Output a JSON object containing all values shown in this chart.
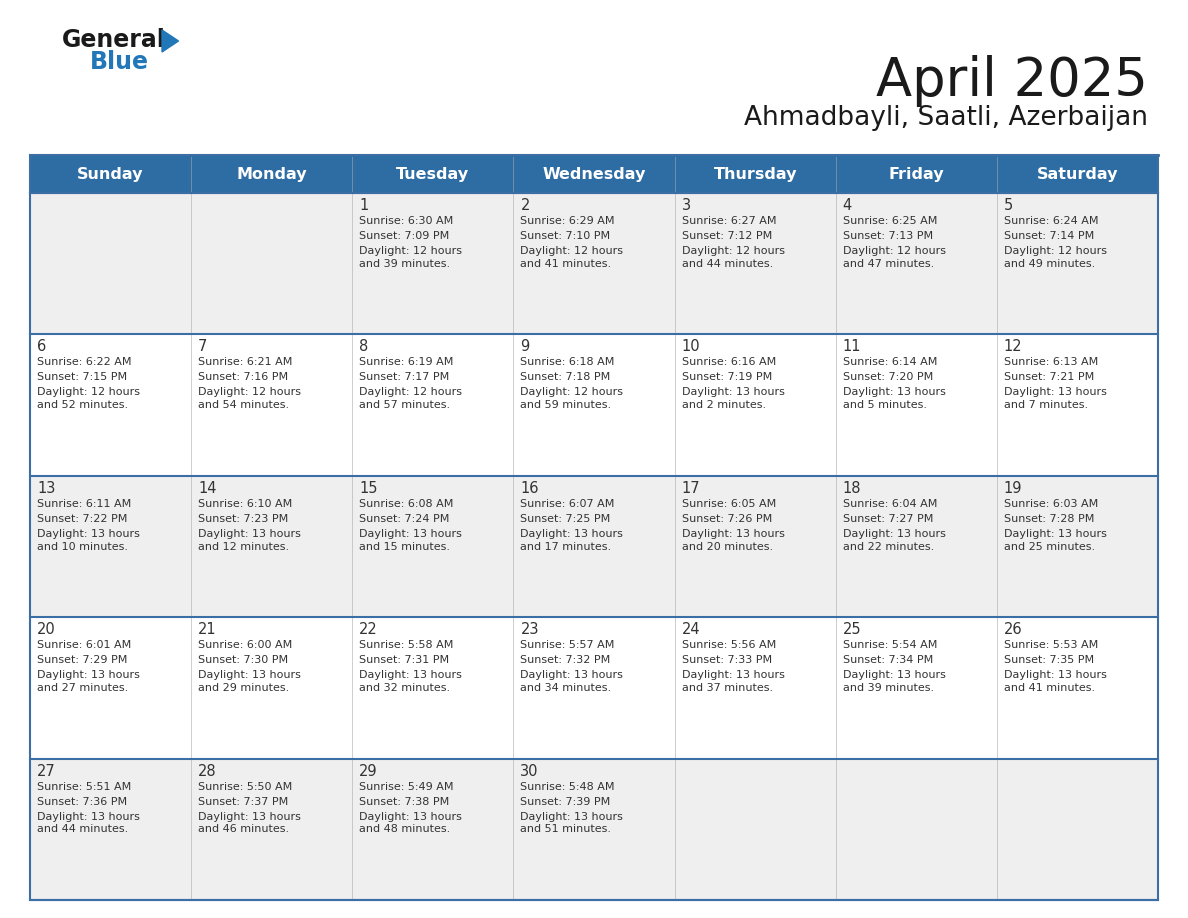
{
  "title": "April 2025",
  "subtitle": "Ahmadbayli, Saatli, Azerbaijan",
  "header_color": "#2E6DA4",
  "header_text_color": "#FFFFFF",
  "cell_bg_week1": "#F0F0F0",
  "cell_bg_week2": "#FFFFFF",
  "cell_bg_week3": "#F0F0F0",
  "cell_bg_week4": "#FFFFFF",
  "cell_bg_week5": "#F0F0F0",
  "border_color": "#2E6DA4",
  "sep_color": "#3A6EA5",
  "text_color": "#333333",
  "days_of_week": [
    "Sunday",
    "Monday",
    "Tuesday",
    "Wednesday",
    "Thursday",
    "Friday",
    "Saturday"
  ],
  "weeks": [
    [
      {
        "day": "",
        "sunrise": "",
        "sunset": "",
        "daylight": ""
      },
      {
        "day": "",
        "sunrise": "",
        "sunset": "",
        "daylight": ""
      },
      {
        "day": "1",
        "sunrise": "Sunrise: 6:30 AM",
        "sunset": "Sunset: 7:09 PM",
        "daylight": "Daylight: 12 hours\nand 39 minutes."
      },
      {
        "day": "2",
        "sunrise": "Sunrise: 6:29 AM",
        "sunset": "Sunset: 7:10 PM",
        "daylight": "Daylight: 12 hours\nand 41 minutes."
      },
      {
        "day": "3",
        "sunrise": "Sunrise: 6:27 AM",
        "sunset": "Sunset: 7:12 PM",
        "daylight": "Daylight: 12 hours\nand 44 minutes."
      },
      {
        "day": "4",
        "sunrise": "Sunrise: 6:25 AM",
        "sunset": "Sunset: 7:13 PM",
        "daylight": "Daylight: 12 hours\nand 47 minutes."
      },
      {
        "day": "5",
        "sunrise": "Sunrise: 6:24 AM",
        "sunset": "Sunset: 7:14 PM",
        "daylight": "Daylight: 12 hours\nand 49 minutes."
      }
    ],
    [
      {
        "day": "6",
        "sunrise": "Sunrise: 6:22 AM",
        "sunset": "Sunset: 7:15 PM",
        "daylight": "Daylight: 12 hours\nand 52 minutes."
      },
      {
        "day": "7",
        "sunrise": "Sunrise: 6:21 AM",
        "sunset": "Sunset: 7:16 PM",
        "daylight": "Daylight: 12 hours\nand 54 minutes."
      },
      {
        "day": "8",
        "sunrise": "Sunrise: 6:19 AM",
        "sunset": "Sunset: 7:17 PM",
        "daylight": "Daylight: 12 hours\nand 57 minutes."
      },
      {
        "day": "9",
        "sunrise": "Sunrise: 6:18 AM",
        "sunset": "Sunset: 7:18 PM",
        "daylight": "Daylight: 12 hours\nand 59 minutes."
      },
      {
        "day": "10",
        "sunrise": "Sunrise: 6:16 AM",
        "sunset": "Sunset: 7:19 PM",
        "daylight": "Daylight: 13 hours\nand 2 minutes."
      },
      {
        "day": "11",
        "sunrise": "Sunrise: 6:14 AM",
        "sunset": "Sunset: 7:20 PM",
        "daylight": "Daylight: 13 hours\nand 5 minutes."
      },
      {
        "day": "12",
        "sunrise": "Sunrise: 6:13 AM",
        "sunset": "Sunset: 7:21 PM",
        "daylight": "Daylight: 13 hours\nand 7 minutes."
      }
    ],
    [
      {
        "day": "13",
        "sunrise": "Sunrise: 6:11 AM",
        "sunset": "Sunset: 7:22 PM",
        "daylight": "Daylight: 13 hours\nand 10 minutes."
      },
      {
        "day": "14",
        "sunrise": "Sunrise: 6:10 AM",
        "sunset": "Sunset: 7:23 PM",
        "daylight": "Daylight: 13 hours\nand 12 minutes."
      },
      {
        "day": "15",
        "sunrise": "Sunrise: 6:08 AM",
        "sunset": "Sunset: 7:24 PM",
        "daylight": "Daylight: 13 hours\nand 15 minutes."
      },
      {
        "day": "16",
        "sunrise": "Sunrise: 6:07 AM",
        "sunset": "Sunset: 7:25 PM",
        "daylight": "Daylight: 13 hours\nand 17 minutes."
      },
      {
        "day": "17",
        "sunrise": "Sunrise: 6:05 AM",
        "sunset": "Sunset: 7:26 PM",
        "daylight": "Daylight: 13 hours\nand 20 minutes."
      },
      {
        "day": "18",
        "sunrise": "Sunrise: 6:04 AM",
        "sunset": "Sunset: 7:27 PM",
        "daylight": "Daylight: 13 hours\nand 22 minutes."
      },
      {
        "day": "19",
        "sunrise": "Sunrise: 6:03 AM",
        "sunset": "Sunset: 7:28 PM",
        "daylight": "Daylight: 13 hours\nand 25 minutes."
      }
    ],
    [
      {
        "day": "20",
        "sunrise": "Sunrise: 6:01 AM",
        "sunset": "Sunset: 7:29 PM",
        "daylight": "Daylight: 13 hours\nand 27 minutes."
      },
      {
        "day": "21",
        "sunrise": "Sunrise: 6:00 AM",
        "sunset": "Sunset: 7:30 PM",
        "daylight": "Daylight: 13 hours\nand 29 minutes."
      },
      {
        "day": "22",
        "sunrise": "Sunrise: 5:58 AM",
        "sunset": "Sunset: 7:31 PM",
        "daylight": "Daylight: 13 hours\nand 32 minutes."
      },
      {
        "day": "23",
        "sunrise": "Sunrise: 5:57 AM",
        "sunset": "Sunset: 7:32 PM",
        "daylight": "Daylight: 13 hours\nand 34 minutes."
      },
      {
        "day": "24",
        "sunrise": "Sunrise: 5:56 AM",
        "sunset": "Sunset: 7:33 PM",
        "daylight": "Daylight: 13 hours\nand 37 minutes."
      },
      {
        "day": "25",
        "sunrise": "Sunrise: 5:54 AM",
        "sunset": "Sunset: 7:34 PM",
        "daylight": "Daylight: 13 hours\nand 39 minutes."
      },
      {
        "day": "26",
        "sunrise": "Sunrise: 5:53 AM",
        "sunset": "Sunset: 7:35 PM",
        "daylight": "Daylight: 13 hours\nand 41 minutes."
      }
    ],
    [
      {
        "day": "27",
        "sunrise": "Sunrise: 5:51 AM",
        "sunset": "Sunset: 7:36 PM",
        "daylight": "Daylight: 13 hours\nand 44 minutes."
      },
      {
        "day": "28",
        "sunrise": "Sunrise: 5:50 AM",
        "sunset": "Sunset: 7:37 PM",
        "daylight": "Daylight: 13 hours\nand 46 minutes."
      },
      {
        "day": "29",
        "sunrise": "Sunrise: 5:49 AM",
        "sunset": "Sunset: 7:38 PM",
        "daylight": "Daylight: 13 hours\nand 48 minutes."
      },
      {
        "day": "30",
        "sunrise": "Sunrise: 5:48 AM",
        "sunset": "Sunset: 7:39 PM",
        "daylight": "Daylight: 13 hours\nand 51 minutes."
      },
      {
        "day": "",
        "sunrise": "",
        "sunset": "",
        "daylight": ""
      },
      {
        "day": "",
        "sunrise": "",
        "sunset": "",
        "daylight": ""
      },
      {
        "day": "",
        "sunrise": "",
        "sunset": "",
        "daylight": ""
      }
    ]
  ]
}
